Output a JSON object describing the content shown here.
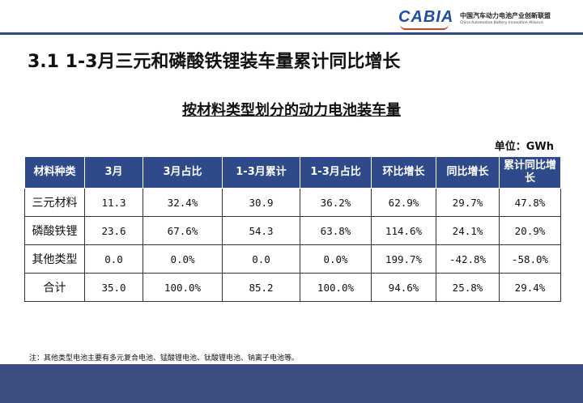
{
  "header": {
    "logo_text": "CABIA",
    "org_name_cn": "中国汽车动力电池产业创新联盟",
    "org_name_en": "China Automotive Battery Innovation Alliance"
  },
  "page_title": "3.1  1-3月三元和磷酸铁锂装车量累计同比增长",
  "subtitle": "按材料类型划分的动力电池装车量",
  "unit": "单位：GWh",
  "table": {
    "columns": [
      "材料种类",
      "3月",
      "3月占比",
      "1-3月累计",
      "1-3月占比",
      "环比增长",
      "同比增长",
      "累计同比增长"
    ],
    "rows": [
      [
        "三元材料",
        "11.3",
        "32.4%",
        "30.9",
        "36.2%",
        "62.9%",
        "29.7%",
        "47.8%"
      ],
      [
        "磷酸铁锂",
        "23.6",
        "67.6%",
        "54.3",
        "63.8%",
        "114.6%",
        "24.1%",
        "20.9%"
      ],
      [
        "其他类型",
        "0.0",
        "0.0%",
        "0.0",
        "0.0%",
        "199.7%",
        "-42.8%",
        "-58.0%"
      ],
      [
        "合计",
        "35.0",
        "100.0%",
        "85.2",
        "100.0%",
        "94.6%",
        "25.8%",
        "29.4%"
      ]
    ]
  },
  "note": "注：其他类型电池主要有多元复合电池、锰酸锂电池、钛酸锂电池、钠离子电池等。",
  "colors": {
    "header_bg": "#2f4a8a",
    "footer_bg": "#3d4d80",
    "logo_blue": "#1f4ea0",
    "logo_red": "#e03a2f"
  }
}
